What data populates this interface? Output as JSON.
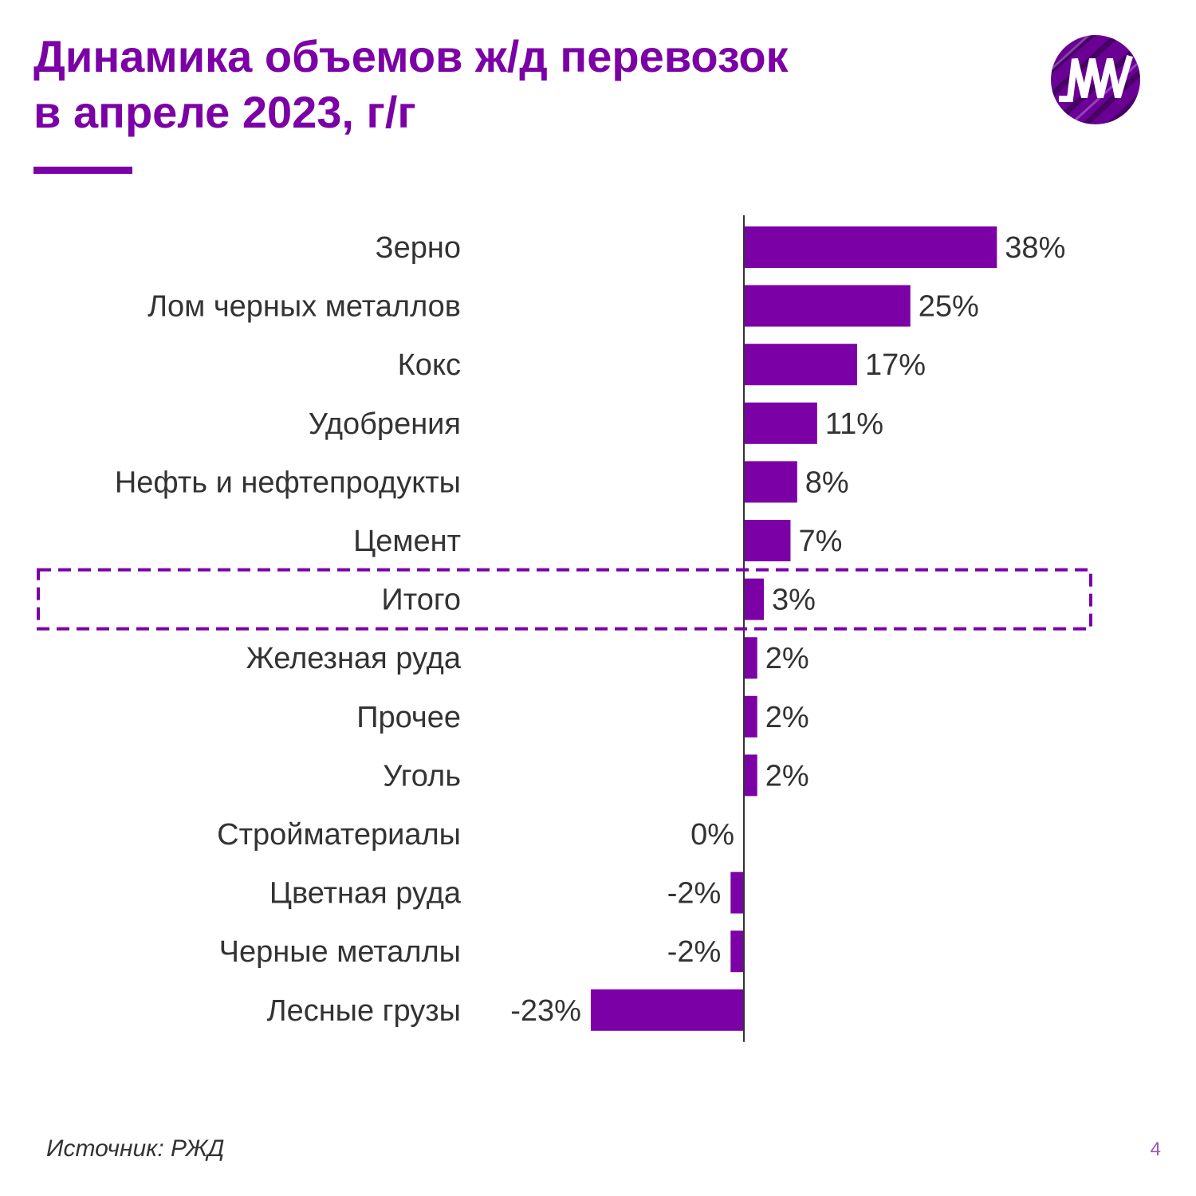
{
  "title": {
    "line1": "Динамика объемов ж/д перевозок",
    "line2": "в апреле 2023, г/г"
  },
  "colors": {
    "accent": "#7B00A6",
    "bar": "#7B00A6",
    "text": "#333333",
    "page_number": "#9B59B6"
  },
  "logo": {
    "icon": "mw-logo-icon",
    "text": "MW"
  },
  "chart_data": {
    "type": "bar",
    "orientation": "horizontal",
    "categories": [
      "Зерно",
      "Лом черных металлов",
      "Кокс",
      "Удобрения",
      "Нефть и нефтепродукты",
      "Цемент",
      "Итого",
      "Железная руда",
      "Прочее",
      "Уголь",
      "Стройматериалы",
      "Цветная руда",
      "Черные металлы",
      "Лесные грузы"
    ],
    "values": [
      38,
      25,
      17,
      11,
      8,
      7,
      3,
      2,
      2,
      2,
      0,
      -2,
      -2,
      -23
    ],
    "labels": [
      "38%",
      "25%",
      "17%",
      "11%",
      "8%",
      "7%",
      "3%",
      "2%",
      "2%",
      "2%",
      "0%",
      "-2%",
      "-2%",
      "-23%"
    ],
    "highlighted_category": "Итого",
    "xlim": [
      -23,
      38
    ],
    "grid": false,
    "legend": "none"
  },
  "footer": {
    "source": "Источник: РЖД",
    "page_number": "4"
  }
}
